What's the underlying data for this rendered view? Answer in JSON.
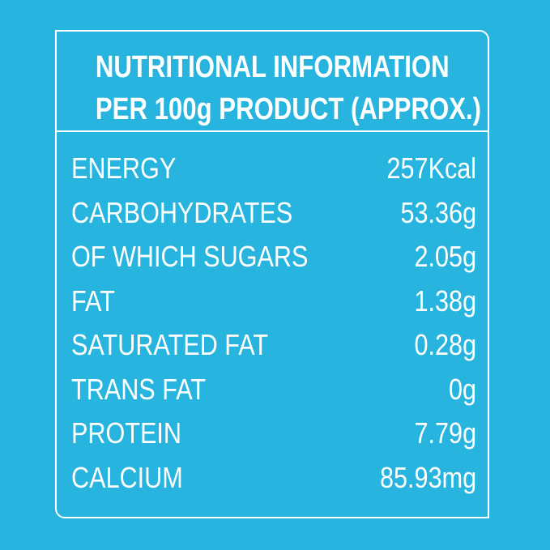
{
  "header": {
    "title": "NUTRITIONAL INFORMATION",
    "subtitle": "PER 100g PRODUCT (APPROX.)"
  },
  "table": {
    "rows": [
      [
        "ENERGY",
        "257Kcal"
      ],
      [
        "CARBOHYDRATES",
        "53.36g"
      ],
      [
        "OF WHICH SUGARS",
        "2.05g"
      ],
      [
        "FAT",
        "1.38g"
      ],
      [
        "SATURATED FAT",
        "0.28g"
      ],
      [
        "TRANS FAT",
        "0g"
      ],
      [
        "PROTEIN",
        "7.79g"
      ],
      [
        "CALCIUM",
        "85.93mg"
      ]
    ]
  }
}
